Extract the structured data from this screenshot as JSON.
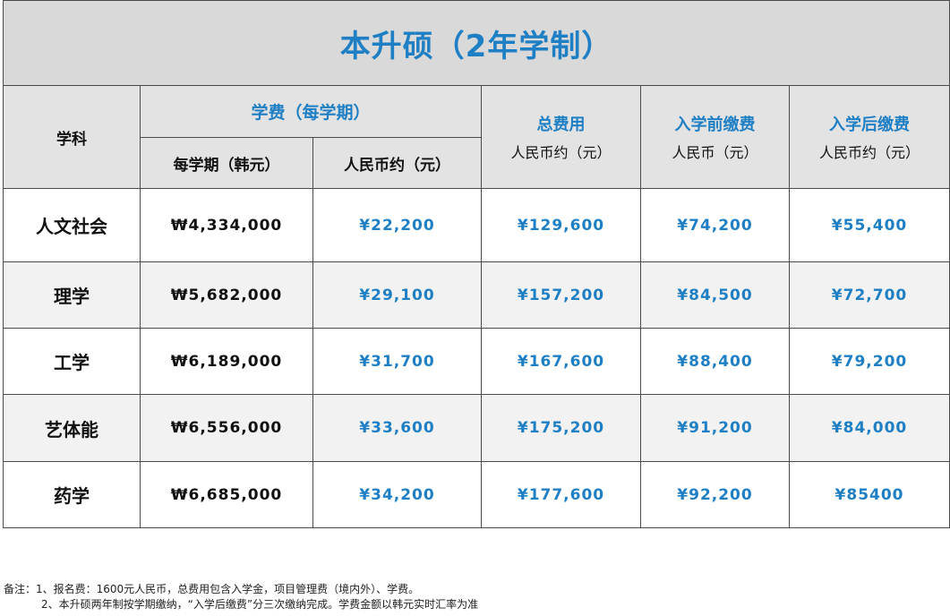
{
  "title": "本升硕（2年学制）",
  "headers": {
    "subject": "学科",
    "tuition_group": "学费（每学期）",
    "tuition_krw": "每学期（韩元）",
    "tuition_rmb": "人民币约（元）",
    "total_title": "总费用",
    "total_unit": "人民币约（元）",
    "pre_title": "入学前缴费",
    "pre_unit": "人民币（元）",
    "post_title": "入学后缴费",
    "post_unit": "人民币约（元）"
  },
  "rows": [
    {
      "subject": "人文社会",
      "krw": "₩4,334,000",
      "rmb": "¥22,200",
      "total": "¥129,600",
      "pre": "¥74,200",
      "post": "¥55,400"
    },
    {
      "subject": "理学",
      "krw": "₩5,682,000",
      "rmb": "¥29,100",
      "total": "¥157,200",
      "pre": "¥84,500",
      "post": "¥72,700"
    },
    {
      "subject": "工学",
      "krw": "₩6,189,000",
      "rmb": "¥31,700",
      "total": "¥167,600",
      "pre": "¥88,400",
      "post": "¥79,200"
    },
    {
      "subject": "艺体能",
      "krw": "₩6,556,000",
      "rmb": "¥33,600",
      "total": "¥175,200",
      "pre": "¥91,200",
      "post": "¥84,000"
    },
    {
      "subject": "药学",
      "krw": "₩6,685,000",
      "rmb": "¥34,200",
      "total": "¥177,600",
      "pre": "¥92,200",
      "post": "¥85400"
    }
  ],
  "notes": {
    "line1": "备注：1、报名费：1600元人民币，总费用包含入学金，项目管理费（境内外）、学费。",
    "line2": "2、本升硕两年制按学期缴纳，“入学后缴费”分三次缴纳完成。学费金额以韩元实时汇率为准"
  },
  "colors": {
    "accent_blue": "#1f7fc4",
    "header_grey": "#d9d9d9",
    "row_grey": "#f2f2f2",
    "border": "#4a4a4a"
  }
}
